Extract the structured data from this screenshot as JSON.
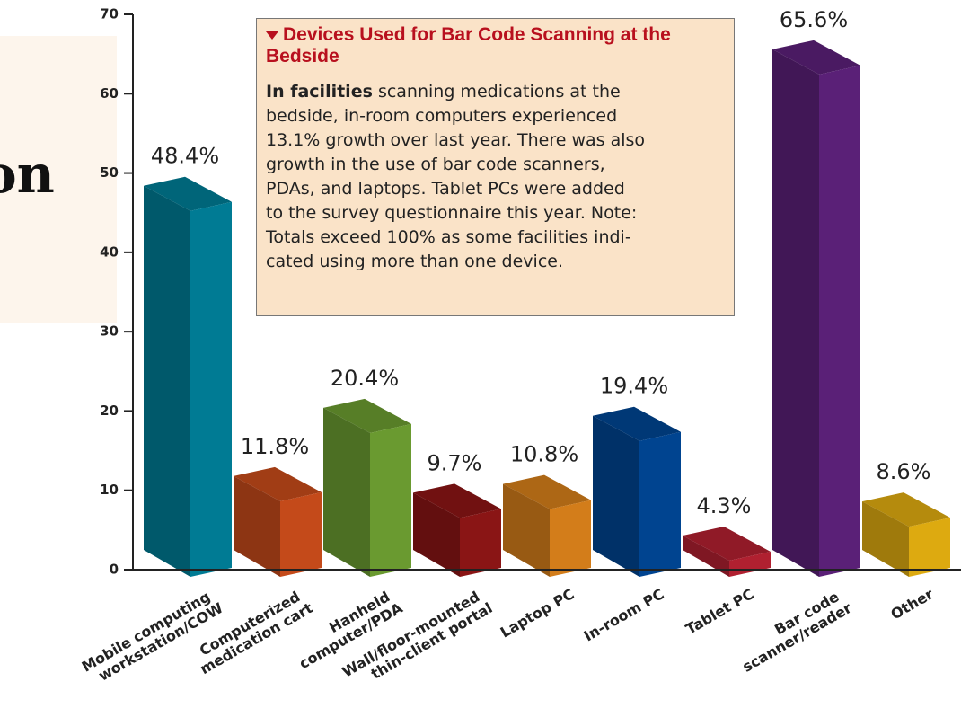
{
  "background_text": "on",
  "chart_data": {
    "type": "bar3d",
    "title": "Devices Used for Bar Code Scanning at the Bedside",
    "note_lead": "In facilities",
    "note_lines": [
      "scanning medications at the",
      "bedside, in-room computers experienced",
      "13.1% growth over last year. There was also",
      "growth in the use of bar code scanners,",
      "PDAs, and laptops. Tablet PCs were added",
      "to the survey questionnaire this year. Note:",
      "Totals exceed 100% as some facilities indi-",
      "cated using more than one device."
    ],
    "categories": [
      [
        "Mobile computing",
        "workstation/COW"
      ],
      [
        "Computerized",
        "medication cart"
      ],
      [
        "Hanheld",
        "computer/PDA"
      ],
      [
        "Wall/floor-mounted",
        "thin-client portal"
      ],
      [
        "Laptop PC"
      ],
      [
        "In-room PC"
      ],
      [
        "Tablet PC"
      ],
      [
        "Bar code",
        "scanner/reader"
      ],
      [
        "Other"
      ]
    ],
    "values": [
      48.4,
      11.8,
      20.4,
      9.7,
      10.8,
      19.4,
      4.3,
      65.6,
      8.6
    ],
    "value_labels": [
      "48.4%",
      "11.8%",
      "20.4%",
      "9.7%",
      "10.8%",
      "19.4%",
      "4.3%",
      "65.6%",
      "8.6%"
    ],
    "colors": [
      "#007b94",
      "#c44a1a",
      "#6a9a30",
      "#8a1515",
      "#d37d1a",
      "#004490",
      "#b02030",
      "#5a2077",
      "#ddaa10"
    ],
    "ylim": [
      0,
      70
    ],
    "yticks": [
      0,
      10,
      20,
      30,
      40,
      50,
      60,
      70
    ]
  }
}
